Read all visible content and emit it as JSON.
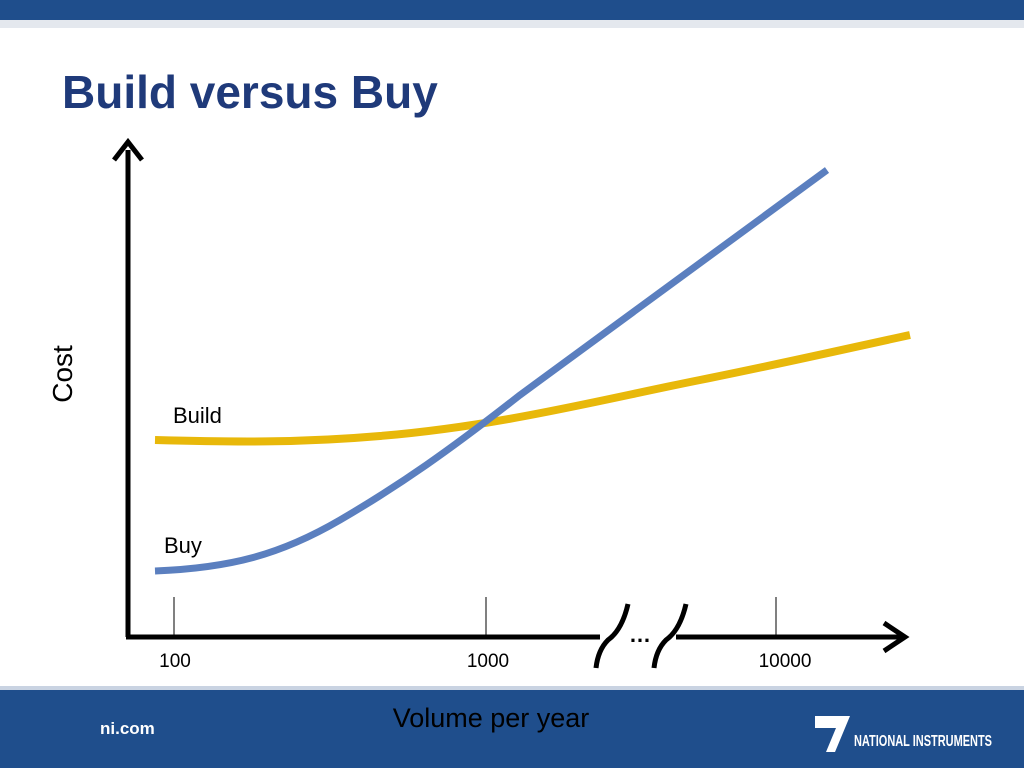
{
  "header": {
    "title": "Build versus Buy"
  },
  "diagram": {
    "y_axis_label": "Cost",
    "x_axis_label": "Volume per year",
    "x_ticks": [
      "100",
      "1000",
      "10000"
    ],
    "break_mark": "…",
    "curves": [
      {
        "label": "Build"
      },
      {
        "label": "Buy"
      }
    ]
  },
  "footer": {
    "site": "ni.com",
    "logo": "NATIONAL INSTRUMENTS"
  }
}
